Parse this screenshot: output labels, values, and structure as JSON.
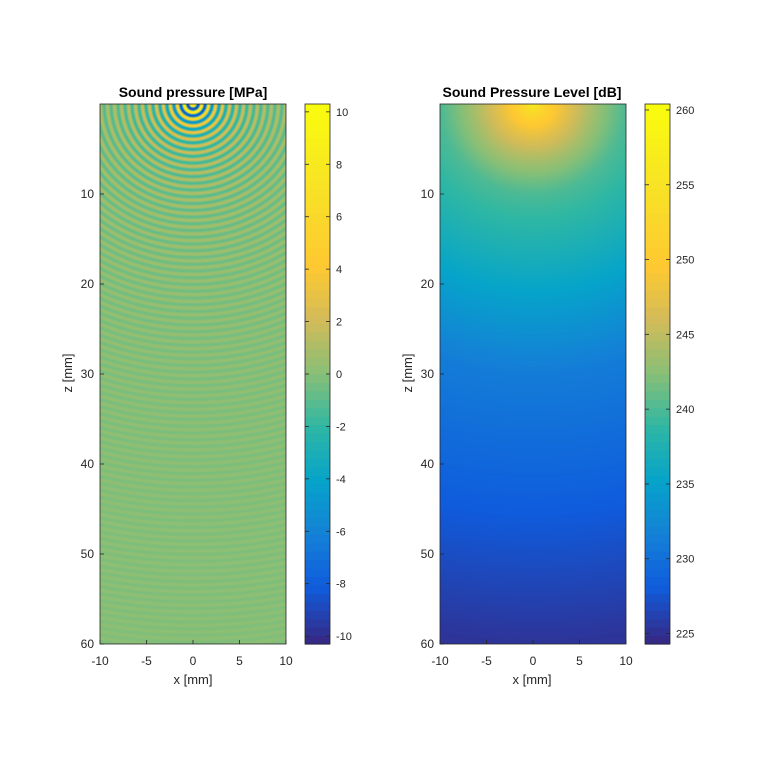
{
  "chart_data": [
    {
      "type": "heatmap",
      "title": "Sound pressure [MPa]",
      "xlabel": "x [mm]",
      "ylabel": "z [mm]",
      "xlim": [
        -10,
        10
      ],
      "ylim": [
        0,
        60
      ],
      "y_direction": "reverse",
      "x_ticks": [
        -10,
        -5,
        0,
        5,
        10
      ],
      "y_ticks": [
        10,
        20,
        30,
        40,
        50,
        60
      ],
      "colorbar": {
        "colormap": "parula",
        "clim": [
          -10.3,
          10.3
        ],
        "ticks": [
          -10,
          -8,
          -6,
          -4,
          -2,
          0,
          2,
          4,
          6,
          8,
          10
        ]
      },
      "field": {
        "description": "oscillating pressure wave radiating from source at x=0, z=0",
        "source_x": 0,
        "source_z": 0,
        "wavelength_mm": 0.75,
        "peak_amplitude": 10,
        "amplitude_at_z10": 1.2,
        "amplitude_at_z60": 0.2
      }
    },
    {
      "type": "heatmap",
      "title": "Sound Pressure Level [dB]",
      "xlabel": "x [mm]",
      "ylabel": "z [mm]",
      "xlim": [
        -10,
        10
      ],
      "ylim": [
        0,
        60
      ],
      "y_direction": "reverse",
      "x_ticks": [
        -10,
        -5,
        0,
        5,
        10
      ],
      "y_ticks": [
        10,
        20,
        30,
        40,
        50,
        60
      ],
      "colorbar": {
        "colormap": "parula",
        "clim": [
          224.3,
          260.4
        ],
        "ticks": [
          225,
          230,
          235,
          240,
          245,
          250,
          255,
          260
        ]
      },
      "field": {
        "description": "SPL decreasing with distance from source at x=0, z=0",
        "source_x": 0,
        "source_z": 0,
        "level_at_source": 259,
        "level_at_z10": 240,
        "level_at_z30": 231,
        "level_at_z60": 225
      }
    }
  ]
}
